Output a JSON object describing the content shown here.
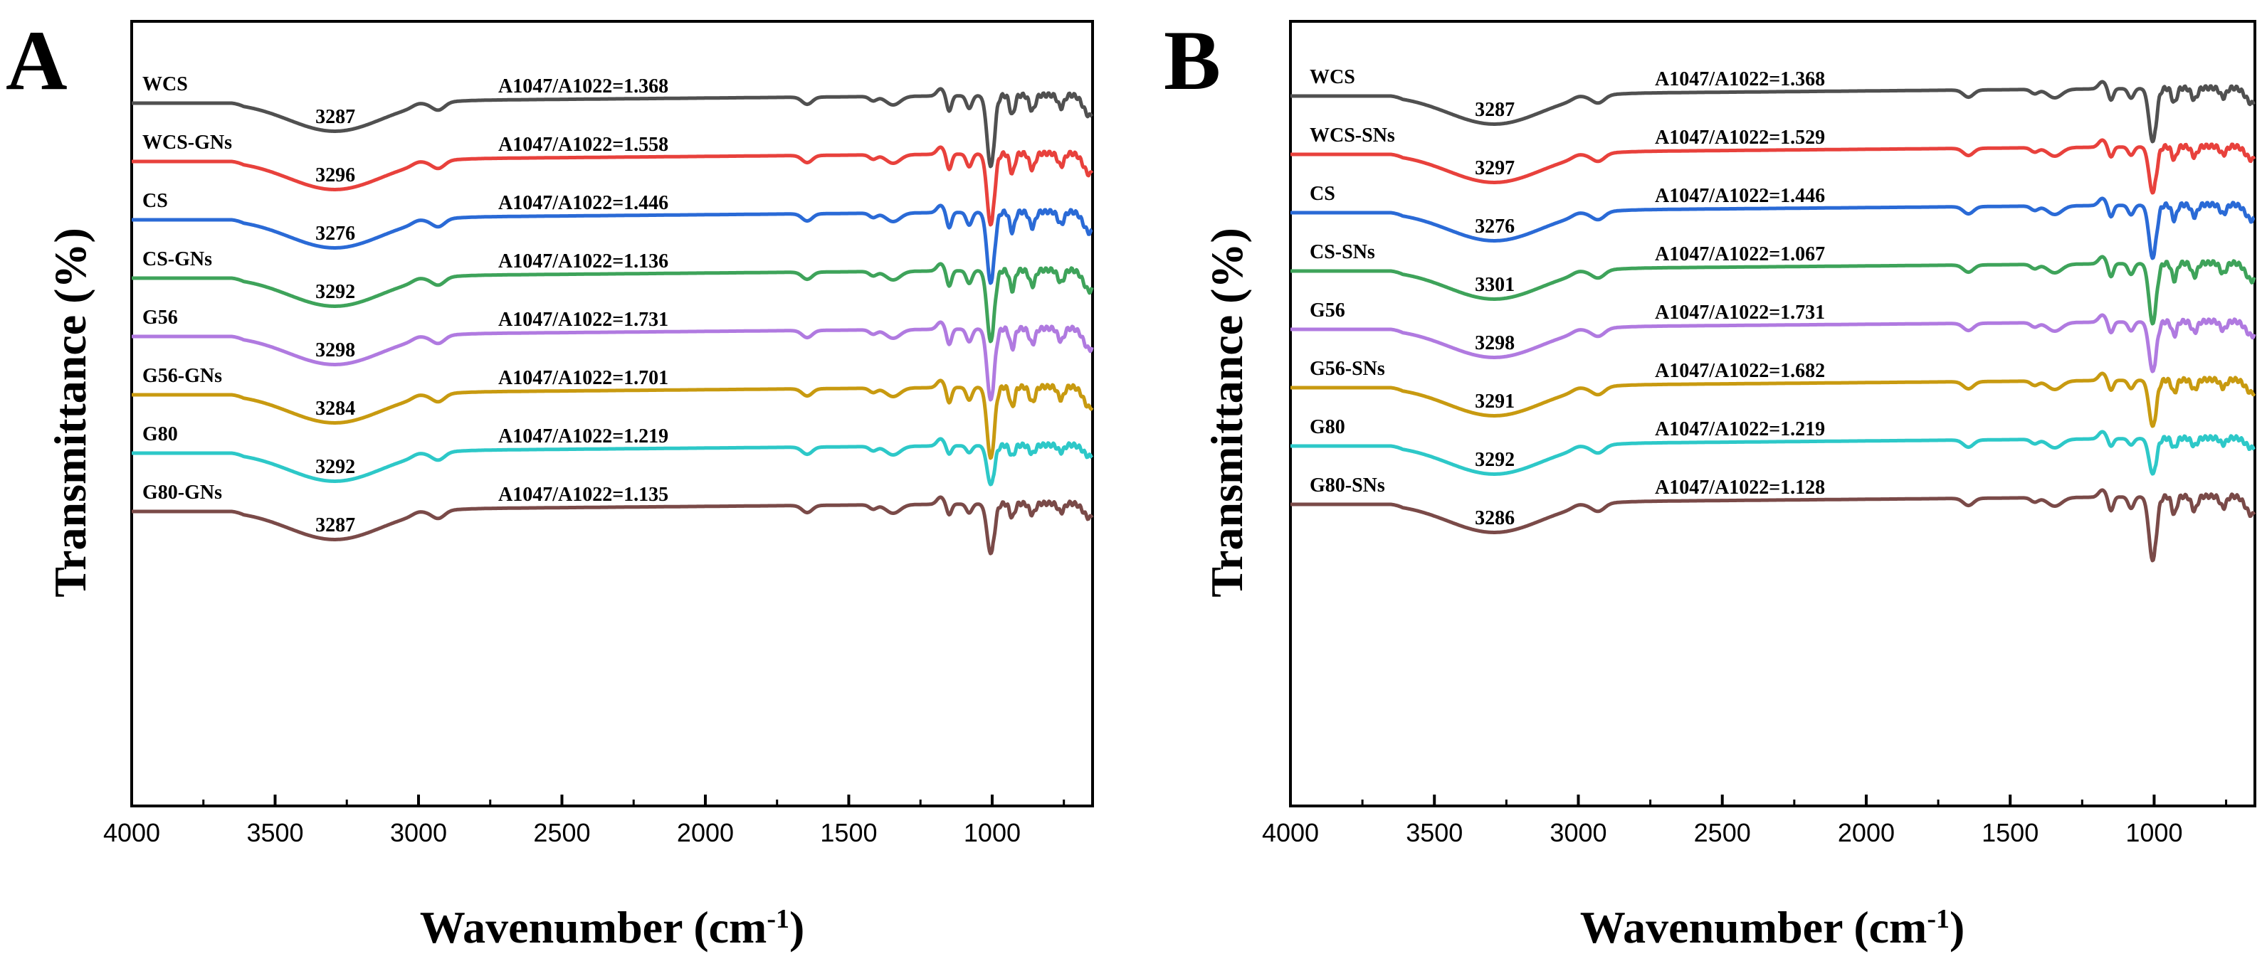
{
  "chart_data": [
    {
      "panel": "A",
      "type": "line",
      "xlabel": "Wavenumber (cm",
      "xlabel_sup": "-1",
      "xlabel_tail": ")",
      "ylabel": "Transmittance (%)",
      "xlim": [
        4000,
        650
      ],
      "xticks": [
        4000,
        3500,
        3000,
        2500,
        2000,
        1500,
        1000
      ],
      "series": [
        {
          "name": "WCS",
          "color": "#505050",
          "offset": 0,
          "peak": "3287",
          "ratio": "A1047/A1022=1.368",
          "depth": 1.0
        },
        {
          "name": "WCS-GNs",
          "color": "#e8413c",
          "offset": 1,
          "peak": "3296",
          "ratio": "A1047/A1022=1.558",
          "depth": 1.0
        },
        {
          "name": "CS",
          "color": "#2a6ad6",
          "offset": 2,
          "peak": "3276",
          "ratio": "A1047/A1022=1.446",
          "depth": 1.0
        },
        {
          "name": "CS-GNs",
          "color": "#3ea35a",
          "offset": 3,
          "peak": "3292",
          "ratio": "A1047/A1022=1.136",
          "depth": 1.0
        },
        {
          "name": "G56",
          "color": "#b07ae0",
          "offset": 4,
          "peak": "3298",
          "ratio": "A1047/A1022=1.731",
          "depth": 1.0
        },
        {
          "name": "G56-GNs",
          "color": "#c89a10",
          "offset": 5,
          "peak": "3284",
          "ratio": "A1047/A1022=1.701",
          "depth": 1.0
        },
        {
          "name": "G80",
          "color": "#2dc8c8",
          "offset": 6,
          "peak": "3292",
          "ratio": "A1047/A1022=1.219",
          "depth": 0.55
        },
        {
          "name": "G80-GNs",
          "color": "#7a4a48",
          "offset": 7,
          "peak": "3287",
          "ratio": "A1047/A1022=1.135",
          "depth": 0.7
        }
      ]
    },
    {
      "panel": "B",
      "type": "line",
      "xlabel": "Wavenumber (cm",
      "xlabel_sup": "-1",
      "xlabel_tail": ")",
      "ylabel": "Transmittance (%)",
      "xlim": [
        4000,
        650
      ],
      "xticks": [
        4000,
        3500,
        3000,
        2500,
        2000,
        1500,
        1000
      ],
      "series": [
        {
          "name": "WCS",
          "color": "#505050",
          "offset": 0,
          "peak": "3287",
          "ratio": "A1047/A1022=1.368",
          "depth": 0.75
        },
        {
          "name": "WCS-SNs",
          "color": "#e8413c",
          "offset": 1,
          "peak": "3297",
          "ratio": "A1047/A1022=1.529",
          "depth": 0.65
        },
        {
          "name": "CS",
          "color": "#2a6ad6",
          "offset": 2,
          "peak": "3276",
          "ratio": "A1047/A1022=1.446",
          "depth": 0.75
        },
        {
          "name": "CS-SNs",
          "color": "#3ea35a",
          "offset": 3,
          "peak": "3301",
          "ratio": "A1047/A1022=1.067",
          "depth": 0.85
        },
        {
          "name": "G56",
          "color": "#b07ae0",
          "offset": 4,
          "peak": "3298",
          "ratio": "A1047/A1022=1.731",
          "depth": 0.7
        },
        {
          "name": "G56-SNs",
          "color": "#c89a10",
          "offset": 5,
          "peak": "3291",
          "ratio": "A1047/A1022=1.682",
          "depth": 0.65
        },
        {
          "name": "G80",
          "color": "#2dc8c8",
          "offset": 6,
          "peak": "3292",
          "ratio": "A1047/A1022=1.219",
          "depth": 0.5
        },
        {
          "name": "G80-SNs",
          "color": "#7a4a48",
          "offset": 7,
          "peak": "3286",
          "ratio": "A1047/A1022=1.128",
          "depth": 0.9
        }
      ]
    }
  ]
}
